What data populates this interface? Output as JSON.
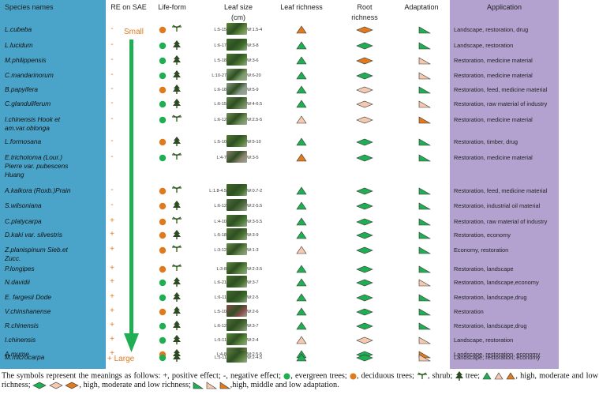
{
  "headers": {
    "species": "Species names",
    "re": "RE on SAE",
    "lifeform": "Life-form",
    "leafsize": "Leaf size",
    "leafsize_unit": "(cm)",
    "leaf_richness": "Leaf richness",
    "root_richness_1": "Root",
    "root_richness_2": "richness",
    "adaptation": "Adaptation",
    "application": "Application"
  },
  "effect_labels": {
    "top": "Small",
    "bottom": "Large"
  },
  "rows": [
    {
      "name": "L.cubeba",
      "re": "-",
      "tree": "deciduous",
      "form": "shrub",
      "L": "L:5-15",
      "W": "W:1.5-4",
      "leaf": "low",
      "root": "low",
      "adapt": "high",
      "app": "Landscape, restoration, drug",
      "img": "#5c8a3a"
    },
    {
      "name": "L.lucidum",
      "re": "-",
      "tree": "evergreen",
      "form": "tree",
      "L": "L:6-17",
      "W": "W:3-8",
      "leaf": "high",
      "root": "high",
      "adapt": "high",
      "app": "Landscape, restoration",
      "img": "#3e6f2c"
    },
    {
      "name": "M.philippensis",
      "re": "-",
      "tree": "evergreen",
      "form": "tree",
      "L": "L:5-18",
      "W": "W:3-6",
      "leaf": "high",
      "root": "low",
      "adapt": "moderate",
      "app": "Restoration, medicine material",
      "img": "#4d7b33"
    },
    {
      "name": "C.mandarinorum",
      "re": "-",
      "tree": "evergreen",
      "form": "tree",
      "L": "L:10-27",
      "W": "W:6-20",
      "leaf": "high",
      "root": "high",
      "adapt": "moderate",
      "app": "Restoration, medicine material",
      "img": "#7a9a6a"
    },
    {
      "name": "B.papyifera",
      "re": "-",
      "tree": "deciduous",
      "form": "tree",
      "L": "L:6-18",
      "W": "W:5-9",
      "leaf": "high",
      "root": "moderate",
      "adapt": "high",
      "app": "Restoration, feed, medicine material",
      "img": "#8a9a8a"
    },
    {
      "name": "C.glanduliferum",
      "re": "-",
      "tree": "evergreen",
      "form": "tree",
      "L": "L:6-15",
      "W": "W:4-6.5",
      "leaf": "high",
      "root": "moderate",
      "adapt": "moderate",
      "app": "Restoration, raw material of industry",
      "img": "#5f7f4a"
    },
    {
      "name": "I.chinensis   Hook   et\nam.var.oblonga",
      "re": "-",
      "tree": "evergreen",
      "form": "shrub",
      "L": "L:6-12",
      "W": "W:2.5-5",
      "leaf": "moderate",
      "root": "moderate",
      "adapt": "low",
      "app": "Restoration, medicine material",
      "img": "#6f8f5a"
    },
    {
      "name": "L.formosana",
      "re": "-",
      "tree": "deciduous",
      "form": "tree",
      "L": "L:5-10",
      "W": "W:5-10",
      "leaf": "high",
      "root": "high",
      "adapt": "high",
      "app": "Restoration, timber, drug",
      "img": "#4f7a35"
    },
    {
      "name": "E.trichotoma          (Lour.)\nPierre  var.  pubescens\nHuang",
      "re": "-",
      "tree": "evergreen",
      "form": "shrub",
      "L": "L:4-7",
      "W": "W:3-5",
      "leaf": "low",
      "root": "high",
      "adapt": "high",
      "app": "Restoration, medicine material",
      "img": "#8c8270"
    },
    {
      "name": "A.kalkora (Roxb.)Prain",
      "re": "-",
      "tree": "deciduous",
      "form": "shrub",
      "L": "L:1.8-4.5",
      "W": "W:0.7-2",
      "leaf": "high",
      "root": "high",
      "adapt": "high",
      "app": "Restoration, feed, medicine material",
      "img": "#3f6a2a"
    },
    {
      "name": "S.wilsoniana",
      "re": "-",
      "tree": "deciduous",
      "form": "tree",
      "L": "L:6-12",
      "W": "W:2-5.5",
      "leaf": "high",
      "root": "high",
      "adapt": "high",
      "app": "Restoration, industrial oil material",
      "img": "#556b45"
    },
    {
      "name": "C.platycarpa",
      "re": "+",
      "tree": "deciduous",
      "form": "shrub",
      "L": "L:4-10",
      "W": "W:3-5.5",
      "leaf": "high",
      "root": "high",
      "adapt": "high",
      "app": "Restoration, raw material of industry",
      "img": "#4a7a38"
    },
    {
      "name": "D.kaki var. silvestris",
      "re": "+",
      "tree": "deciduous",
      "form": "tree",
      "L": "L:5-18",
      "W": "W:3-9",
      "leaf": "high",
      "root": "high",
      "adapt": "high",
      "app": "Restoration, economy",
      "img": "#4c7332"
    },
    {
      "name": "Z.planispinum    Sieb.et\nZucc.",
      "re": "+",
      "tree": "deciduous",
      "form": "shrub",
      "L": "L:3-12",
      "W": "W:1-3",
      "leaf": "moderate",
      "root": "high",
      "adapt": "high",
      "app": "Economy, restoration",
      "img": "#6a8a4f"
    },
    {
      "name": "P.longipes",
      "re": "+",
      "tree": "deciduous",
      "form": "shrub",
      "L": "L:3-8",
      "W": "W:2-3.5",
      "leaf": "high",
      "root": "high",
      "adapt": "high",
      "app": "Restoration, landscape",
      "img": "#5b8a40"
    },
    {
      "name": "N.davidii",
      "re": "+",
      "tree": "evergreen",
      "form": "tree",
      "L": "L:6-21",
      "W": "W:3-7",
      "leaf": "high",
      "root": "high",
      "adapt": "moderate",
      "app": "Restoration, landscape,economy",
      "img": "#456f30"
    },
    {
      "name": "E. fargesii Dode",
      "re": "+",
      "tree": "evergreen",
      "form": "tree",
      "L": "L:6-11",
      "W": "W:2-5",
      "leaf": "high",
      "root": "high",
      "adapt": "high",
      "app": "Restoration, landscape,drug",
      "img": "#3d6a2c"
    },
    {
      "name": "V.chinshanense",
      "re": "+",
      "tree": "deciduous",
      "form": "tree",
      "L": "L:5-10",
      "W": "W:2-6",
      "leaf": "high",
      "root": "high",
      "adapt": "high",
      "app": "Restoration",
      "img": "#8a4a4a"
    },
    {
      "name": "R.chinensis",
      "re": "+",
      "tree": "evergreen",
      "form": "tree",
      "L": "L:6-12",
      "W": "W:3-7",
      "leaf": "high",
      "root": "high",
      "adapt": "high",
      "app": "Restoration, landscape,drug",
      "img": "#4f6e3a"
    },
    {
      "name": "I.chinensis",
      "re": "+",
      "tree": "evergreen",
      "form": "tree",
      "L": "L:5-11",
      "W": "W:2-4",
      "leaf": "moderate",
      "root": "moderate",
      "adapt": "moderate",
      "app": "Landscape, restoration",
      "img": "#5a8a3a"
    },
    {
      "name": "A.mume",
      "re": "+",
      "tree": "deciduous",
      "form": "tree",
      "L": "L:4-8",
      "W": "W:2.5-5",
      "leaf": "high",
      "root": "high",
      "adapt": "low",
      "app": "Landscape, restoration, economy",
      "img": "#6a7a50"
    },
    {
      "name": "M.microcarpa",
      "re": "+",
      "tree": "evergreen",
      "form": "tree",
      "L": "L:5-11",
      "W": "W:2-4.5",
      "leaf": "high",
      "root": "high",
      "adapt": "moderate",
      "app": "Landscape, restoration, economy",
      "img": "#5a8040"
    }
  ],
  "colors": {
    "high": "#1fae52",
    "moderate": "#f4c9b0",
    "low": "#e07a1f",
    "evergreen": "#1fae52",
    "deciduous": "#e07a1f",
    "species_bg": "#4aa3c8",
    "app_bg": "#b3a2d0",
    "arrow": "#1fae52"
  },
  "footnote": {
    "t1": "The symbols represent the meanings as follows: +, positive effect; -, negative effect;",
    "t2": ", evergreen trees;",
    "t3": ", deciduous trees;",
    "t4": ", shrub;",
    "t5": "tree;",
    "t6": ", high, moderate and low richness;",
    "t7": ", high, moderate and low richness;",
    "t8": ",high, middle and low adaptation."
  }
}
